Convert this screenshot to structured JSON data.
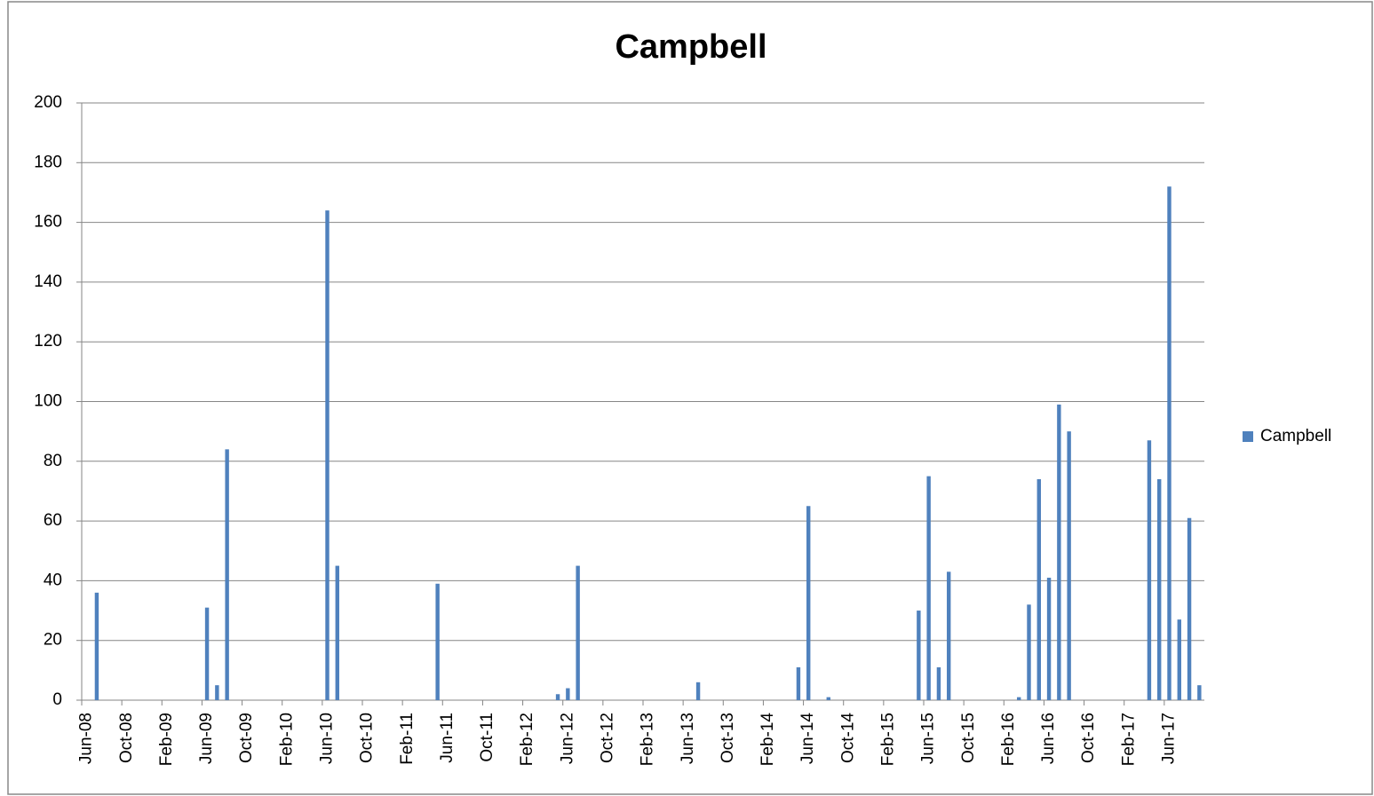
{
  "chart_data": {
    "type": "bar",
    "title": "Campbell",
    "categories": [
      "Jun-08",
      null,
      null,
      null,
      "Oct-08",
      null,
      null,
      null,
      "Feb-09",
      null,
      null,
      null,
      "Jun-09",
      null,
      null,
      null,
      "Oct-09",
      null,
      null,
      null,
      "Feb-10",
      null,
      null,
      null,
      "Jun-10",
      null,
      null,
      null,
      "Oct-10",
      null,
      null,
      null,
      "Feb-11",
      null,
      null,
      null,
      "Jun-11",
      null,
      null,
      null,
      "Oct-11",
      null,
      null,
      null,
      "Feb-12",
      null,
      null,
      null,
      "Jun-12",
      null,
      null,
      null,
      "Oct-12",
      null,
      null,
      null,
      "Feb-13",
      null,
      null,
      null,
      "Jun-13",
      null,
      null,
      null,
      "Oct-13",
      null,
      null,
      null,
      "Feb-14",
      null,
      null,
      null,
      "Jun-14",
      null,
      null,
      null,
      "Oct-14",
      null,
      null,
      null,
      "Feb-15",
      null,
      null,
      null,
      "Jun-15",
      null,
      null,
      null,
      "Oct-15",
      null,
      null,
      null,
      "Feb-16",
      null,
      null,
      null,
      "Jun-16",
      null,
      null,
      null,
      "Oct-16",
      null,
      null,
      null,
      "Feb-17",
      null,
      null,
      null,
      "Jun-17",
      null,
      null,
      null
    ],
    "series": [
      {
        "name": "Campbell",
        "color": "#4f81bd",
        "values": [
          0,
          36,
          0,
          0,
          0,
          0,
          0,
          0,
          0,
          0,
          0,
          0,
          31,
          5,
          84,
          0,
          0,
          0,
          0,
          0,
          0,
          0,
          0,
          0,
          164,
          45,
          0,
          0,
          0,
          0,
          0,
          0,
          0,
          0,
          0,
          39,
          0,
          0,
          0,
          0,
          0,
          0,
          0,
          0,
          0,
          0,
          0,
          2,
          4,
          45,
          0,
          0,
          0,
          0,
          0,
          0,
          0,
          0,
          0,
          0,
          0,
          6,
          0,
          0,
          0,
          0,
          0,
          0,
          0,
          0,
          0,
          11,
          65,
          0,
          1,
          0,
          0,
          0,
          0,
          0,
          0,
          0,
          0,
          30,
          75,
          11,
          43,
          0,
          0,
          0,
          0,
          0,
          0,
          1,
          32,
          74,
          41,
          99,
          90,
          0,
          0,
          0,
          0,
          0,
          0,
          0,
          87,
          74,
          172,
          27,
          61,
          5
        ]
      }
    ],
    "ylim": [
      0,
      200
    ],
    "yticks": [
      0,
      20,
      40,
      60,
      80,
      100,
      120,
      140,
      160,
      180,
      200
    ],
    "grid": true,
    "legend": "right"
  }
}
